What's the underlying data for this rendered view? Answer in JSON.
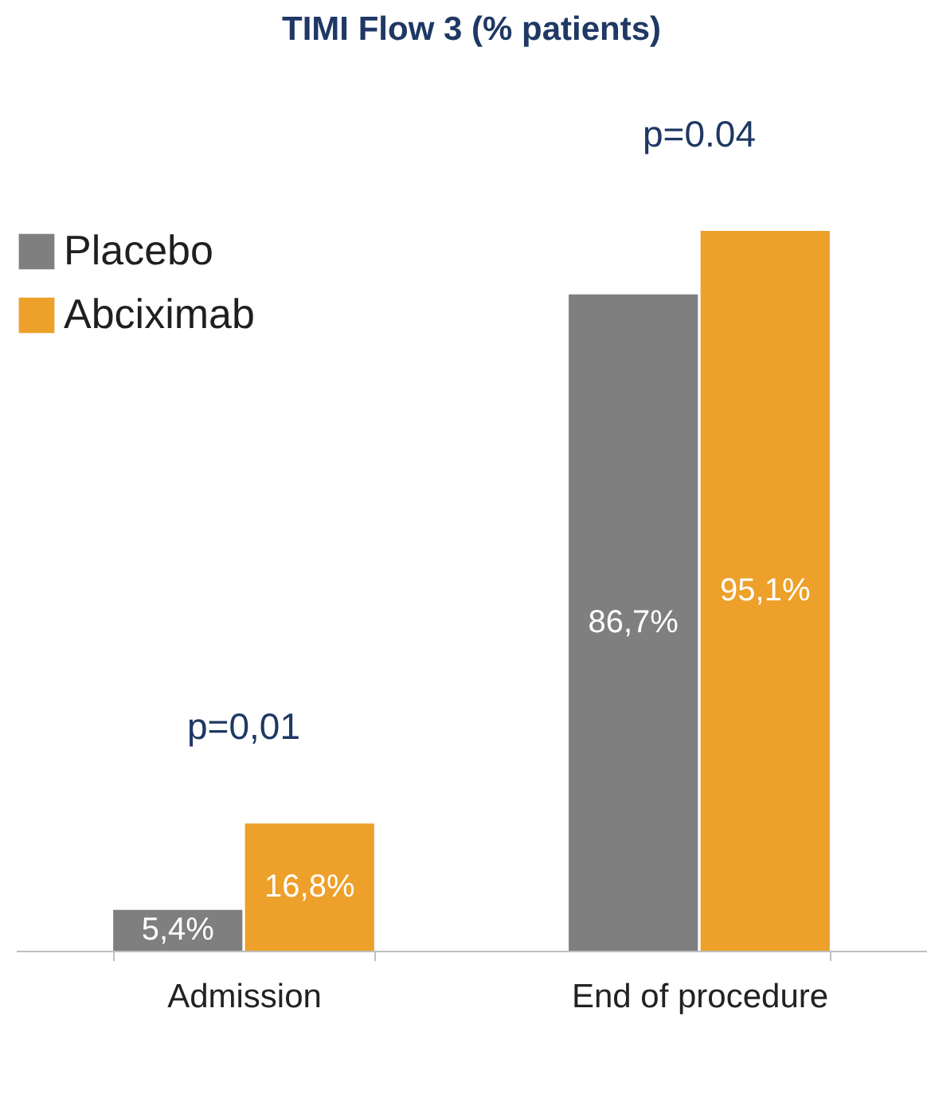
{
  "chart_data": {
    "type": "bar",
    "title": "TIMI Flow 3 (% patients)",
    "categories": [
      "Admission",
      "End of procedure"
    ],
    "series": [
      {
        "name": "Placebo",
        "color": "#7f7f7f",
        "values": [
          5.4,
          86.7
        ],
        "value_labels": [
          "5,4%",
          "86,7%"
        ]
      },
      {
        "name": "Abciximab",
        "color": "#eda02a",
        "values": [
          16.8,
          95.1
        ],
        "value_labels": [
          "16,8%",
          "95,1%"
        ]
      }
    ],
    "annotations": [
      "p=0,01",
      "p=0.04"
    ],
    "legend": "top left",
    "grid": false
  }
}
